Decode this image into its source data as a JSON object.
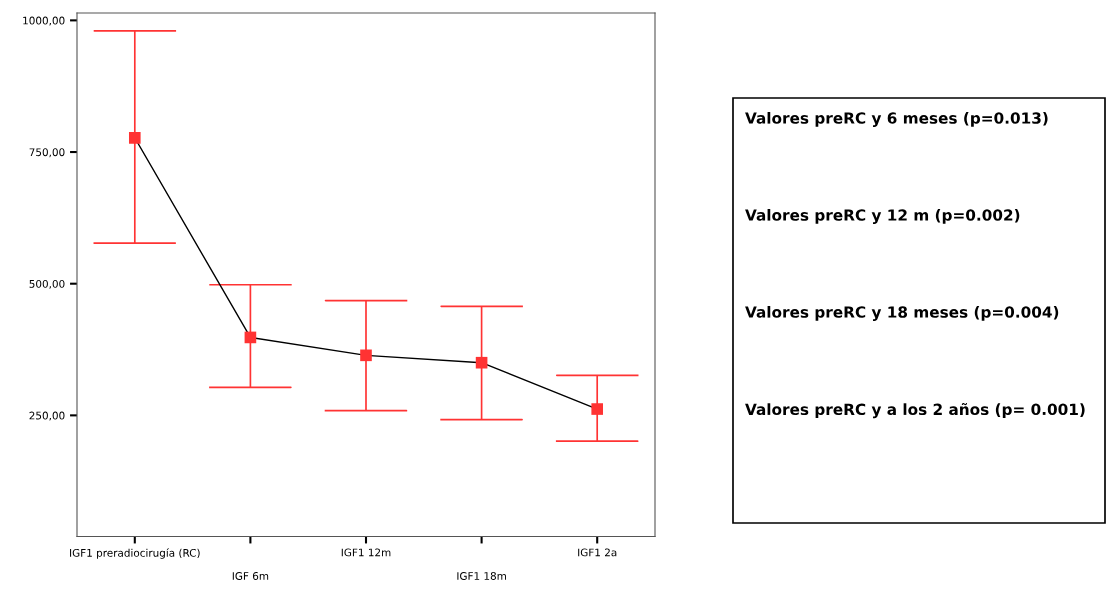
{
  "chart_data": {
    "type": "line",
    "categories": [
      "IGF1 preradiocirugía (RC)",
      "IGF 6m",
      "IGF1 12m",
      "IGF1 18m",
      "IGF1 2a"
    ],
    "series": [
      {
        "color": "#ff3333",
        "values": [
          777,
          398,
          364,
          350,
          262
        ],
        "errors": [
          [
            577,
            980
          ],
          [
            303,
            498
          ],
          [
            259,
            468
          ],
          [
            242,
            457
          ],
          [
            201,
            326
          ]
        ]
      }
    ],
    "ylim": [
      20,
      1014
    ],
    "yticks": [
      {
        "value": 250,
        "label": "250,00"
      },
      {
        "value": 500,
        "label": "500,00"
      },
      {
        "value": 750,
        "label": "750,00"
      },
      {
        "value": 1000,
        "label": "1000,00"
      }
    ],
    "marker": "square",
    "line_style": "solid",
    "grid": false,
    "annotations": [
      "Valores preRC y 6 meses (p=0.013)",
      "Valores preRC y 12 m (p=0.002)",
      "Valores preRC y 18 meses (p=0.004)",
      "Valores preRC y a los 2 años (p= 0.001)"
    ]
  }
}
